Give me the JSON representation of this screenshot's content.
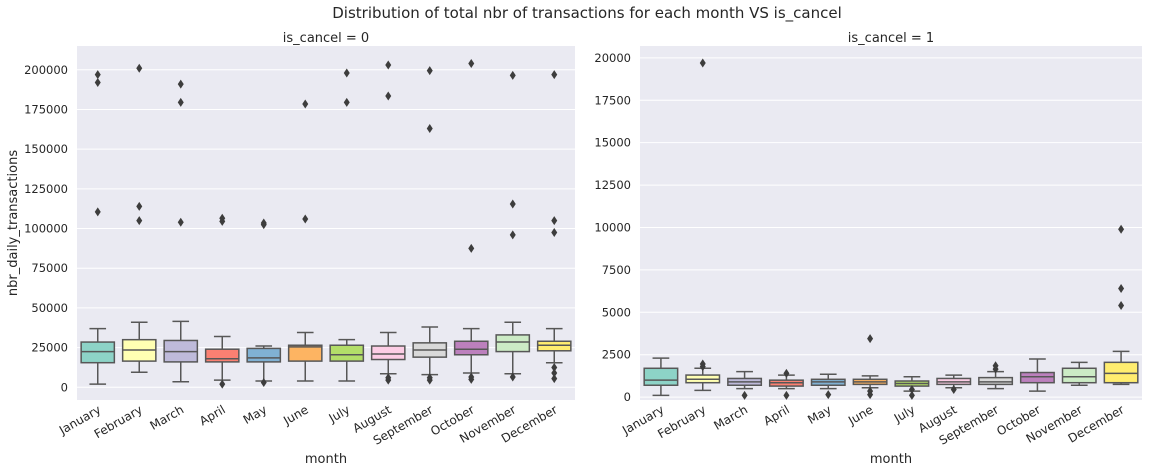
{
  "figure": {
    "title": "Distribution of total nbr of transactions for each month VS is_cancel"
  },
  "palette": [
    "#8dd3c7",
    "#ffffb3",
    "#bebada",
    "#fb8072",
    "#80b1d3",
    "#fdb462",
    "#b3de69",
    "#fccde5",
    "#d9d9d9",
    "#bc80bd",
    "#ccebc5",
    "#ffed6f"
  ],
  "chart_data": [
    {
      "type": "box",
      "title": "is_cancel = 0",
      "xlabel": "month",
      "ylabel": "nbr_daily_transactions",
      "ylim": [
        -8000,
        215000
      ],
      "yticks": [
        0,
        25000,
        50000,
        75000,
        100000,
        125000,
        150000,
        175000,
        200000
      ],
      "yticklabels": [
        "0",
        "25000",
        "50000",
        "75000",
        "100000",
        "125000",
        "150000",
        "175000",
        "200000"
      ],
      "grid": true,
      "categories": [
        "January",
        "February",
        "March",
        "April",
        "May",
        "June",
        "July",
        "August",
        "September",
        "October",
        "November",
        "December"
      ],
      "boxes": [
        {
          "whislo": 2000,
          "q1": 15500,
          "med": 22500,
          "q3": 28500,
          "whishi": 37000,
          "fliers": [
            110500,
            192000,
            197000
          ]
        },
        {
          "whislo": 9500,
          "q1": 16500,
          "med": 23500,
          "q3": 30000,
          "whishi": 41000,
          "fliers": [
            105000,
            114000,
            201000
          ]
        },
        {
          "whislo": 3500,
          "q1": 16000,
          "med": 22500,
          "q3": 29500,
          "whishi": 41500,
          "fliers": [
            104000,
            179500,
            191000
          ]
        },
        {
          "whislo": 4500,
          "q1": 16000,
          "med": 18000,
          "q3": 24000,
          "whishi": 32000,
          "fliers": [
            2000,
            104500,
            106500
          ]
        },
        {
          "whislo": 4000,
          "q1": 16000,
          "med": 18500,
          "q3": 24500,
          "whishi": 26000,
          "fliers": [
            3000,
            102500,
            103500
          ]
        },
        {
          "whislo": 4000,
          "q1": 16500,
          "med": 25500,
          "q3": 26500,
          "whishi": 34500,
          "fliers": [
            106000,
            178500
          ]
        },
        {
          "whislo": 4000,
          "q1": 16500,
          "med": 20500,
          "q3": 26500,
          "whishi": 30000,
          "fliers": [
            179500,
            198000
          ]
        },
        {
          "whislo": 8500,
          "q1": 17500,
          "med": 21000,
          "q3": 26000,
          "whishi": 34500,
          "fliers": [
            4500,
            6000,
            183500,
            203000
          ]
        },
        {
          "whislo": 8000,
          "q1": 19000,
          "med": 23500,
          "q3": 28000,
          "whishi": 38000,
          "fliers": [
            4500,
            6000,
            163000,
            199500
          ]
        },
        {
          "whislo": 9000,
          "q1": 20500,
          "med": 24000,
          "q3": 29000,
          "whishi": 37000,
          "fliers": [
            5000,
            6500,
            87500,
            204000
          ]
        },
        {
          "whislo": 8500,
          "q1": 22500,
          "med": 28500,
          "q3": 33000,
          "whishi": 41000,
          "fliers": [
            6500,
            96000,
            115500,
            196500
          ]
        },
        {
          "whislo": 15500,
          "q1": 23000,
          "med": 26500,
          "q3": 29000,
          "whishi": 37000,
          "fliers": [
            5500,
            9000,
            12500,
            97500,
            105000,
            197000
          ]
        }
      ]
    },
    {
      "type": "box",
      "title": "is_cancel = 1",
      "xlabel": "month",
      "ylabel": "",
      "ylim": [
        -170,
        20700
      ],
      "yticks": [
        0,
        2500,
        5000,
        7500,
        10000,
        12500,
        15000,
        17500,
        20000
      ],
      "yticklabels": [
        "0",
        "2500",
        "5000",
        "7500",
        "10000",
        "12500",
        "15000",
        "17500",
        "20000"
      ],
      "grid": true,
      "categories": [
        "January",
        "February",
        "March",
        "April",
        "May",
        "June",
        "July",
        "August",
        "September",
        "October",
        "November",
        "December"
      ],
      "boxes": [
        {
          "whislo": 100,
          "q1": 700,
          "med": 1000,
          "q3": 1700,
          "whishi": 2300,
          "fliers": []
        },
        {
          "whislo": 400,
          "q1": 850,
          "med": 1050,
          "q3": 1300,
          "whishi": 1700,
          "fliers": [
            1800,
            1950,
            19700
          ]
        },
        {
          "whislo": 500,
          "q1": 700,
          "med": 900,
          "q3": 1100,
          "whishi": 1500,
          "fliers": [
            100
          ]
        },
        {
          "whislo": 500,
          "q1": 650,
          "med": 850,
          "q3": 1000,
          "whishi": 1300,
          "fliers": [
            100,
            1400
          ]
        },
        {
          "whislo": 500,
          "q1": 700,
          "med": 900,
          "q3": 1050,
          "whishi": 1350,
          "fliers": [
            150
          ]
        },
        {
          "whislo": 550,
          "q1": 750,
          "med": 900,
          "q3": 1050,
          "whishi": 1250,
          "fliers": [
            150,
            350,
            3450
          ]
        },
        {
          "whislo": 350,
          "q1": 650,
          "med": 800,
          "q3": 950,
          "whishi": 1200,
          "fliers": [
            100,
            450
          ]
        },
        {
          "whislo": 550,
          "q1": 750,
          "med": 900,
          "q3": 1100,
          "whishi": 1300,
          "fliers": [
            450
          ]
        },
        {
          "whislo": 500,
          "q1": 750,
          "med": 900,
          "q3": 1150,
          "whishi": 1500,
          "fliers": [
            1650,
            1850
          ]
        },
        {
          "whislo": 350,
          "q1": 850,
          "med": 1200,
          "q3": 1450,
          "whishi": 2250,
          "fliers": []
        },
        {
          "whislo": 700,
          "q1": 850,
          "med": 1200,
          "q3": 1700,
          "whishi": 2050,
          "fliers": []
        },
        {
          "whislo": 750,
          "q1": 850,
          "med": 1400,
          "q3": 2050,
          "whishi": 2700,
          "fliers": [
            5400,
            6400,
            9900
          ]
        }
      ]
    }
  ]
}
